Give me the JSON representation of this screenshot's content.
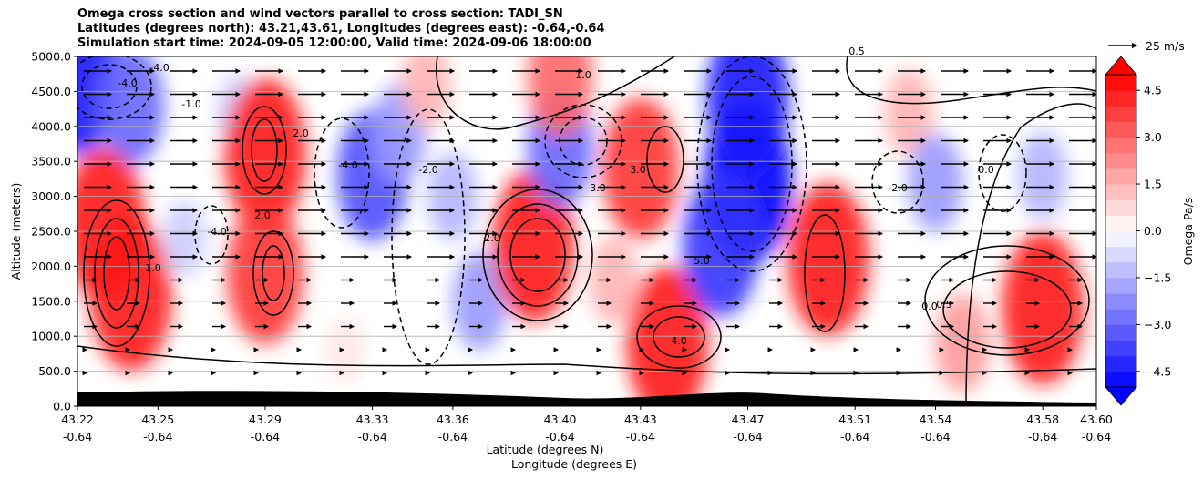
{
  "title_lines": [
    "Omega cross section and wind vectors parallel to cross section: TADI_SN",
    "Latitudes (degrees north): 43.21,43.61, Longitudes (degrees east): -0.64,-0.64",
    "Simulation start time: 2024-09-05 12:00:00, Valid time: 2024-09-06 18:00:00"
  ],
  "chart_data": {
    "type": "heatmap",
    "ylabel": "Altitude (meters)",
    "xlabel_lines": [
      "Latitude (degrees N)",
      "Longitude (degrees E)"
    ],
    "ylim": [
      0,
      5000
    ],
    "y_ticks": [
      "0.0",
      "500.0",
      "1000.0",
      "1500.0",
      "2000.0",
      "2500.0",
      "3000.0",
      "3500.0",
      "4000.0",
      "4500.0",
      "5000.0"
    ],
    "y_tick_values": [
      0,
      500,
      1000,
      1500,
      2000,
      2500,
      3000,
      3500,
      4000,
      4500,
      5000
    ],
    "x_ticks": [
      {
        "lat": "43.22",
        "lon": "-0.64"
      },
      {
        "lat": "43.25",
        "lon": "-0.64"
      },
      {
        "lat": "43.29",
        "lon": "-0.64"
      },
      {
        "lat": "43.33",
        "lon": "-0.64"
      },
      {
        "lat": "43.36",
        "lon": "-0.64"
      },
      {
        "lat": "43.40",
        "lon": "-0.64"
      },
      {
        "lat": "43.43",
        "lon": "-0.64"
      },
      {
        "lat": "43.47",
        "lon": "-0.64"
      },
      {
        "lat": "43.51",
        "lon": "-0.64"
      },
      {
        "lat": "43.54",
        "lon": "-0.64"
      },
      {
        "lat": "43.58",
        "lon": "-0.64"
      },
      {
        "lat": "43.60",
        "lon": "-0.64"
      }
    ],
    "x_tick_values": [
      43.22,
      43.25,
      43.29,
      43.33,
      43.36,
      43.4,
      43.43,
      43.47,
      43.51,
      43.54,
      43.58,
      43.6
    ],
    "grid": "horizontal",
    "colorbar": {
      "label": "Omega Pa/s",
      "range": [
        -5,
        5
      ],
      "levels_step": 0.5,
      "ticks": [
        "−4.5",
        "−3.0",
        "−1.5",
        "0.0",
        "1.5",
        "3.0",
        "4.5"
      ],
      "tick_values": [
        -4.5,
        -3.0,
        -1.5,
        0.0,
        1.5,
        3.0,
        4.5
      ],
      "extend": "both",
      "negative_color": "#0000ff",
      "positive_color": "#ff0000",
      "neutral_color": "#ffffff"
    },
    "vector_key": {
      "label": "25 m/s"
    },
    "contour_labels": [
      "-4.0",
      "-3.0",
      "-1.0",
      "-2.0",
      "1.0",
      "2.0",
      "3.0",
      "4.0",
      "5.0",
      "0.0",
      "0.5"
    ],
    "omega_cells": [
      {
        "lat": 43.22,
        "alt": 4700,
        "value": -4.5
      },
      {
        "lat": 43.24,
        "alt": 4300,
        "value": -3.0
      },
      {
        "lat": 43.28,
        "alt": 4200,
        "value": -1.0
      },
      {
        "lat": 43.29,
        "alt": 3600,
        "value": 4.5
      },
      {
        "lat": 43.29,
        "alt": 1900,
        "value": 4.0
      },
      {
        "lat": 43.23,
        "alt": 2600,
        "value": 4.5
      },
      {
        "lat": 43.24,
        "alt": 1600,
        "value": 4.5
      },
      {
        "lat": 43.26,
        "alt": 2400,
        "value": -1.0
      },
      {
        "lat": 43.33,
        "alt": 3300,
        "value": -3.5
      },
      {
        "lat": 43.34,
        "alt": 3900,
        "value": -2.0
      },
      {
        "lat": 43.36,
        "alt": 3000,
        "value": -1.5
      },
      {
        "lat": 43.37,
        "alt": 1500,
        "value": -2.0
      },
      {
        "lat": 43.35,
        "alt": 4600,
        "value": 1.5
      },
      {
        "lat": 43.39,
        "alt": 2300,
        "value": 4.5
      },
      {
        "lat": 43.4,
        "alt": 3700,
        "value": -3.0
      },
      {
        "lat": 43.4,
        "alt": 4700,
        "value": 3.0
      },
      {
        "lat": 43.43,
        "alt": 3400,
        "value": 4.0
      },
      {
        "lat": 43.44,
        "alt": 900,
        "value": 4.5
      },
      {
        "lat": 43.47,
        "alt": 3200,
        "value": -5.0
      },
      {
        "lat": 43.47,
        "alt": 4400,
        "value": -4.5
      },
      {
        "lat": 43.46,
        "alt": 2300,
        "value": -4.0
      },
      {
        "lat": 43.5,
        "alt": 2100,
        "value": 4.5
      },
      {
        "lat": 43.53,
        "alt": 4200,
        "value": 1.5
      },
      {
        "lat": 43.54,
        "alt": 3200,
        "value": -2.0
      },
      {
        "lat": 43.58,
        "alt": 3300,
        "value": -1.5
      },
      {
        "lat": 43.58,
        "alt": 1400,
        "value": 4.5
      },
      {
        "lat": 43.55,
        "alt": 900,
        "value": 2.0
      },
      {
        "lat": 43.32,
        "alt": 800,
        "value": 0.5
      },
      {
        "lat": 43.42,
        "alt": 1800,
        "value": 1.5
      }
    ]
  }
}
